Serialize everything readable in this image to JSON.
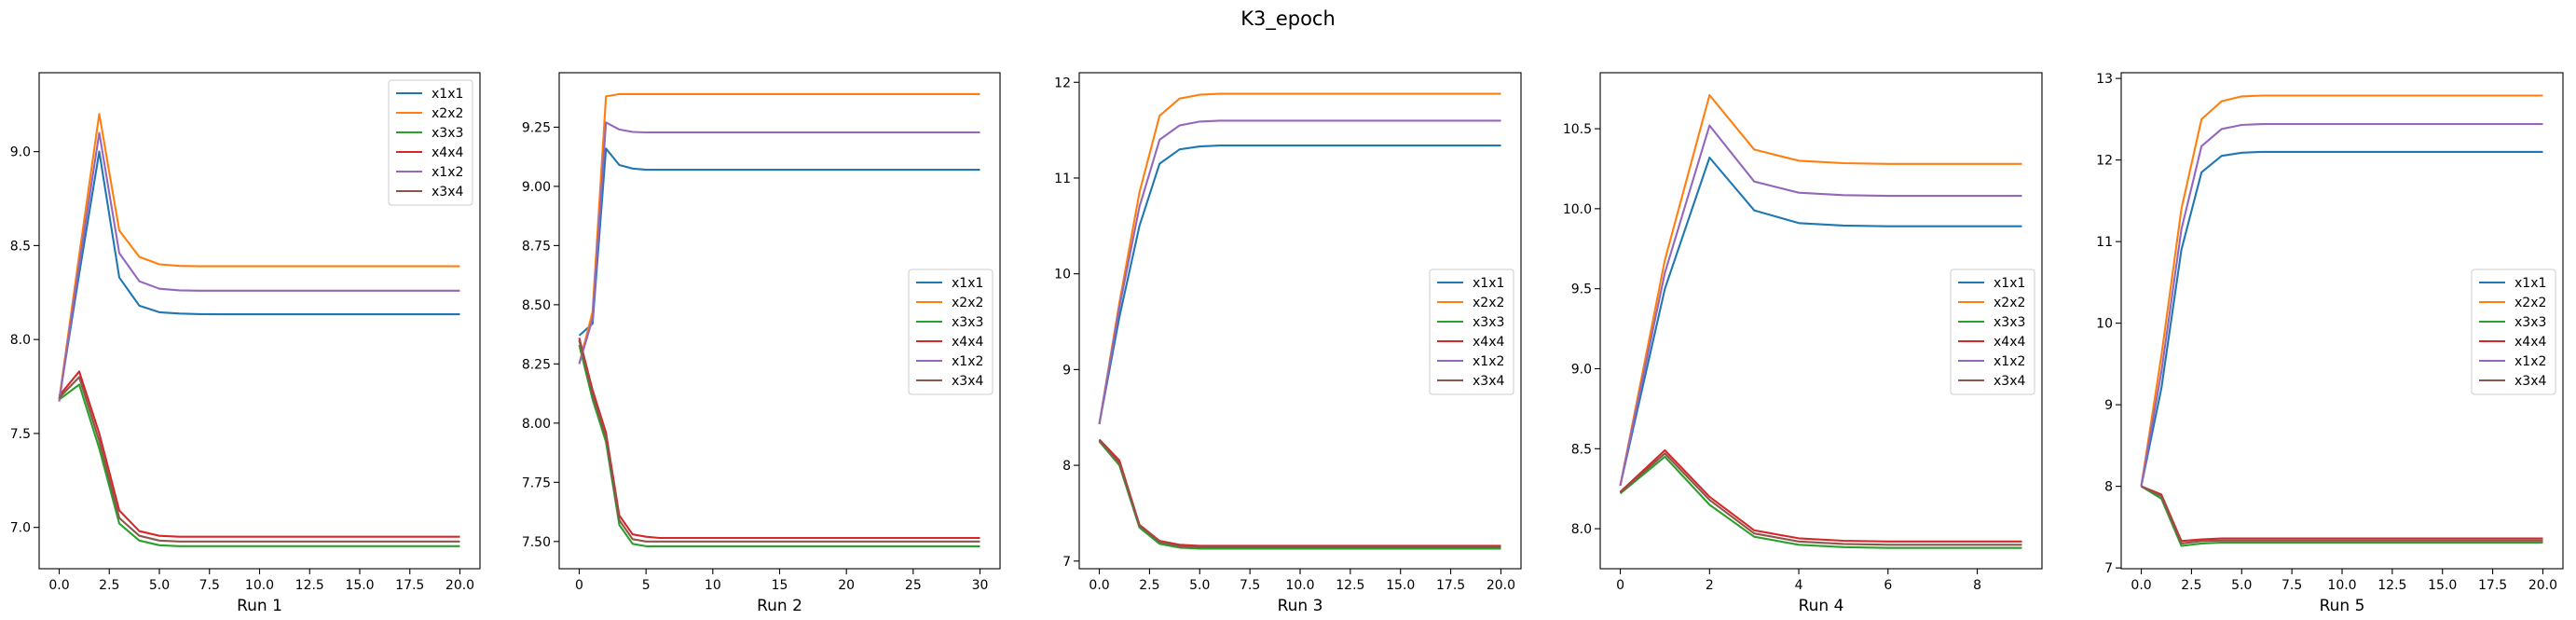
{
  "figure": {
    "title": "K3_epoch"
  },
  "chart_data": [
    {
      "type": "line",
      "xlabel": "Run 1",
      "xlim": [
        -1,
        21
      ],
      "ylim": [
        6.78,
        9.42
      ],
      "xticks": [
        0,
        2.5,
        5,
        7.5,
        10,
        12.5,
        15,
        17.5,
        20
      ],
      "xtick_labels": [
        "0.0",
        "2.5",
        "5.0",
        "7.5",
        "10.0",
        "12.5",
        "15.0",
        "17.5",
        "20.0"
      ],
      "yticks": [
        7.0,
        7.5,
        8.0,
        8.5,
        9.0
      ],
      "ytick_labels": [
        "7.0",
        "7.5",
        "8.0",
        "8.5",
        "9.0"
      ],
      "legend_loc": "upper right",
      "x": [
        0,
        1,
        2,
        3,
        4,
        5,
        6,
        7,
        8,
        9,
        10,
        11,
        12,
        13,
        14,
        15,
        16,
        17,
        18,
        19,
        20
      ],
      "series": [
        {
          "name": "x1x1",
          "color": "#1f77b4",
          "values": [
            7.68,
            8.35,
            9.0,
            8.33,
            8.18,
            8.145,
            8.138,
            8.135,
            8.134,
            8.134,
            8.134,
            8.134,
            8.134,
            8.134,
            8.134,
            8.134,
            8.134,
            8.134,
            8.134,
            8.134,
            8.134
          ]
        },
        {
          "name": "x2x2",
          "color": "#ff7f0e",
          "values": [
            7.68,
            8.45,
            9.2,
            8.58,
            8.44,
            8.4,
            8.392,
            8.39,
            8.39,
            8.39,
            8.39,
            8.39,
            8.39,
            8.39,
            8.39,
            8.39,
            8.39,
            8.39,
            8.39,
            8.39,
            8.39
          ]
        },
        {
          "name": "x3x3",
          "color": "#2ca02c",
          "values": [
            7.68,
            7.76,
            7.42,
            7.02,
            6.93,
            6.905,
            6.9,
            6.9,
            6.9,
            6.9,
            6.9,
            6.9,
            6.9,
            6.9,
            6.9,
            6.9,
            6.9,
            6.9,
            6.9,
            6.9,
            6.9
          ]
        },
        {
          "name": "x4x4",
          "color": "#d62728",
          "values": [
            7.7,
            7.83,
            7.5,
            7.09,
            6.98,
            6.955,
            6.95,
            6.95,
            6.95,
            6.95,
            6.95,
            6.95,
            6.95,
            6.95,
            6.95,
            6.95,
            6.95,
            6.95,
            6.95,
            6.95,
            6.95
          ]
        },
        {
          "name": "x1x2",
          "color": "#9467bd",
          "values": [
            7.67,
            8.4,
            9.1,
            8.46,
            8.31,
            8.27,
            8.262,
            8.26,
            8.26,
            8.26,
            8.26,
            8.26,
            8.26,
            8.26,
            8.26,
            8.26,
            8.26,
            8.26,
            8.26,
            8.26,
            8.26
          ]
        },
        {
          "name": "x3x4",
          "color": "#8c564b",
          "values": [
            7.69,
            7.8,
            7.46,
            7.05,
            6.955,
            6.93,
            6.925,
            6.925,
            6.925,
            6.925,
            6.925,
            6.925,
            6.925,
            6.925,
            6.925,
            6.925,
            6.925,
            6.925,
            6.925,
            6.925,
            6.925
          ]
        }
      ]
    },
    {
      "type": "line",
      "xlabel": "Run 2",
      "xlim": [
        -1.5,
        31.5
      ],
      "ylim": [
        7.385,
        9.48
      ],
      "xticks": [
        0,
        5,
        10,
        15,
        20,
        25,
        30
      ],
      "xtick_labels": [
        "0",
        "5",
        "10",
        "15",
        "20",
        "25",
        "30"
      ],
      "yticks": [
        7.5,
        7.75,
        8.0,
        8.25,
        8.5,
        8.75,
        9.0,
        9.25
      ],
      "ytick_labels": [
        "7.50",
        "7.75",
        "8.00",
        "8.25",
        "8.50",
        "8.75",
        "9.00",
        "9.25"
      ],
      "legend_loc": "center right",
      "x": [
        0,
        1,
        2,
        3,
        4,
        5,
        6,
        7,
        8,
        9,
        10,
        11,
        12,
        13,
        14,
        15,
        16,
        17,
        18,
        19,
        20,
        21,
        22,
        23,
        24,
        25,
        26,
        27,
        28,
        29,
        30
      ],
      "series": [
        {
          "name": "x1x1",
          "color": "#1f77b4",
          "values": [
            8.37,
            8.42,
            9.16,
            9.09,
            9.075,
            9.07,
            9.07,
            9.07,
            9.07,
            9.07,
            9.07,
            9.07,
            9.07,
            9.07,
            9.07,
            9.07,
            9.07,
            9.07,
            9.07,
            9.07,
            9.07,
            9.07,
            9.07,
            9.07,
            9.07,
            9.07,
            9.07,
            9.07,
            9.07,
            9.07,
            9.07
          ]
        },
        {
          "name": "x2x2",
          "color": "#ff7f0e",
          "values": [
            8.25,
            8.47,
            9.38,
            9.39,
            9.39,
            9.39,
            9.39,
            9.39,
            9.39,
            9.39,
            9.39,
            9.39,
            9.39,
            9.39,
            9.39,
            9.39,
            9.39,
            9.39,
            9.39,
            9.39,
            9.39,
            9.39,
            9.39,
            9.39,
            9.39,
            9.39,
            9.39,
            9.39,
            9.39,
            9.39,
            9.39
          ]
        },
        {
          "name": "x3x3",
          "color": "#2ca02c",
          "values": [
            8.33,
            8.1,
            7.92,
            7.57,
            7.49,
            7.48,
            7.48,
            7.48,
            7.48,
            7.48,
            7.48,
            7.48,
            7.48,
            7.48,
            7.48,
            7.48,
            7.48,
            7.48,
            7.48,
            7.48,
            7.48,
            7.48,
            7.48,
            7.48,
            7.48,
            7.48,
            7.48,
            7.48,
            7.48,
            7.48,
            7.48
          ]
        },
        {
          "name": "x4x4",
          "color": "#d62728",
          "values": [
            8.36,
            8.14,
            7.96,
            7.61,
            7.53,
            7.52,
            7.515,
            7.515,
            7.515,
            7.515,
            7.515,
            7.515,
            7.515,
            7.515,
            7.515,
            7.515,
            7.515,
            7.515,
            7.515,
            7.515,
            7.515,
            7.515,
            7.515,
            7.515,
            7.515,
            7.515,
            7.515,
            7.515,
            7.515,
            7.515,
            7.515
          ]
        },
        {
          "name": "x1x2",
          "color": "#9467bd",
          "values": [
            8.25,
            8.44,
            9.27,
            9.24,
            9.23,
            9.228,
            9.228,
            9.228,
            9.228,
            9.228,
            9.228,
            9.228,
            9.228,
            9.228,
            9.228,
            9.228,
            9.228,
            9.228,
            9.228,
            9.228,
            9.228,
            9.228,
            9.228,
            9.228,
            9.228,
            9.228,
            9.228,
            9.228,
            9.228,
            9.228,
            9.228
          ]
        },
        {
          "name": "x3x4",
          "color": "#8c564b",
          "values": [
            8.35,
            8.12,
            7.94,
            7.59,
            7.51,
            7.5,
            7.5,
            7.5,
            7.5,
            7.5,
            7.5,
            7.5,
            7.5,
            7.5,
            7.5,
            7.5,
            7.5,
            7.5,
            7.5,
            7.5,
            7.5,
            7.5,
            7.5,
            7.5,
            7.5,
            7.5,
            7.5,
            7.5,
            7.5,
            7.5,
            7.5
          ]
        }
      ]
    },
    {
      "type": "line",
      "xlabel": "Run 3",
      "xlim": [
        -1,
        21
      ],
      "ylim": [
        6.92,
        12.1
      ],
      "xticks": [
        0,
        2.5,
        5,
        7.5,
        10,
        12.5,
        15,
        17.5,
        20
      ],
      "xtick_labels": [
        "0.0",
        "2.5",
        "5.0",
        "7.5",
        "10.0",
        "12.5",
        "15.0",
        "17.5",
        "20.0"
      ],
      "yticks": [
        7,
        8,
        9,
        10,
        11,
        12
      ],
      "ytick_labels": [
        "7",
        "8",
        "9",
        "10",
        "11",
        "12"
      ],
      "legend_loc": "center right",
      "x": [
        0,
        1,
        2,
        3,
        4,
        5,
        6,
        7,
        8,
        9,
        10,
        11,
        12,
        13,
        14,
        15,
        16,
        17,
        18,
        19,
        20
      ],
      "series": [
        {
          "name": "x1x1",
          "color": "#1f77b4",
          "values": [
            8.43,
            9.55,
            10.5,
            11.15,
            11.3,
            11.33,
            11.34,
            11.34,
            11.34,
            11.34,
            11.34,
            11.34,
            11.34,
            11.34,
            11.34,
            11.34,
            11.34,
            11.34,
            11.34,
            11.34,
            11.34
          ]
        },
        {
          "name": "x2x2",
          "color": "#ff7f0e",
          "values": [
            8.43,
            9.7,
            10.85,
            11.65,
            11.83,
            11.87,
            11.88,
            11.88,
            11.88,
            11.88,
            11.88,
            11.88,
            11.88,
            11.88,
            11.88,
            11.88,
            11.88,
            11.88,
            11.88,
            11.88,
            11.88
          ]
        },
        {
          "name": "x3x3",
          "color": "#2ca02c",
          "values": [
            8.25,
            8.0,
            7.35,
            7.18,
            7.14,
            7.13,
            7.13,
            7.13,
            7.13,
            7.13,
            7.13,
            7.13,
            7.13,
            7.13,
            7.13,
            7.13,
            7.13,
            7.13,
            7.13,
            7.13,
            7.13
          ]
        },
        {
          "name": "x4x4",
          "color": "#d62728",
          "values": [
            8.27,
            8.05,
            7.38,
            7.21,
            7.17,
            7.16,
            7.16,
            7.16,
            7.16,
            7.16,
            7.16,
            7.16,
            7.16,
            7.16,
            7.16,
            7.16,
            7.16,
            7.16,
            7.16,
            7.16,
            7.16
          ]
        },
        {
          "name": "x1x2",
          "color": "#9467bd",
          "values": [
            8.43,
            9.65,
            10.7,
            11.4,
            11.55,
            11.59,
            11.6,
            11.6,
            11.6,
            11.6,
            11.6,
            11.6,
            11.6,
            11.6,
            11.6,
            11.6,
            11.6,
            11.6,
            11.6,
            11.6,
            11.6
          ]
        },
        {
          "name": "x3x4",
          "color": "#8c564b",
          "values": [
            8.26,
            8.02,
            7.37,
            7.2,
            7.155,
            7.145,
            7.145,
            7.145,
            7.145,
            7.145,
            7.145,
            7.145,
            7.145,
            7.145,
            7.145,
            7.145,
            7.145,
            7.145,
            7.145,
            7.145,
            7.145
          ]
        }
      ]
    },
    {
      "type": "line",
      "xlabel": "Run 4",
      "xlim": [
        -0.45,
        9.45
      ],
      "ylim": [
        7.75,
        10.85
      ],
      "xticks": [
        0,
        2,
        4,
        6,
        8
      ],
      "xtick_labels": [
        "0",
        "2",
        "4",
        "6",
        "8"
      ],
      "yticks": [
        8.0,
        8.5,
        9.0,
        9.5,
        10.0,
        10.5
      ],
      "ytick_labels": [
        "8.0",
        "8.5",
        "9.0",
        "9.5",
        "10.0",
        "10.5"
      ],
      "legend_loc": "center right",
      "x": [
        0,
        1,
        2,
        3,
        4,
        5,
        6,
        7,
        8,
        9
      ],
      "series": [
        {
          "name": "x1x1",
          "color": "#1f77b4",
          "values": [
            8.27,
            9.5,
            10.32,
            9.99,
            9.91,
            9.895,
            9.89,
            9.89,
            9.89,
            9.89
          ]
        },
        {
          "name": "x2x2",
          "color": "#ff7f0e",
          "values": [
            8.27,
            9.68,
            10.71,
            10.37,
            10.3,
            10.285,
            10.28,
            10.28,
            10.28,
            10.28
          ]
        },
        {
          "name": "x3x3",
          "color": "#2ca02c",
          "values": [
            8.22,
            8.45,
            8.15,
            7.95,
            7.9,
            7.885,
            7.88,
            7.88,
            7.88,
            7.88
          ]
        },
        {
          "name": "x4x4",
          "color": "#d62728",
          "values": [
            8.23,
            8.49,
            8.2,
            7.99,
            7.94,
            7.925,
            7.92,
            7.92,
            7.92,
            7.92
          ]
        },
        {
          "name": "x1x2",
          "color": "#9467bd",
          "values": [
            8.27,
            9.6,
            10.52,
            10.17,
            10.1,
            10.085,
            10.08,
            10.08,
            10.08,
            10.08
          ]
        },
        {
          "name": "x3x4",
          "color": "#8c564b",
          "values": [
            8.225,
            8.47,
            8.18,
            7.97,
            7.92,
            7.905,
            7.9,
            7.9,
            7.9,
            7.9
          ]
        }
      ]
    },
    {
      "type": "line",
      "xlabel": "Run 5",
      "xlim": [
        -1,
        21
      ],
      "ylim": [
        6.99,
        13.07
      ],
      "xticks": [
        0,
        2.5,
        5,
        7.5,
        10,
        12.5,
        15,
        17.5,
        20
      ],
      "xtick_labels": [
        "0.0",
        "2.5",
        "5.0",
        "7.5",
        "10.0",
        "12.5",
        "15.0",
        "17.5",
        "20.0"
      ],
      "yticks": [
        7,
        8,
        9,
        10,
        11,
        12,
        13
      ],
      "ytick_labels": [
        "7",
        "8",
        "9",
        "10",
        "11",
        "12",
        "13"
      ],
      "legend_loc": "center right",
      "x": [
        0,
        1,
        2,
        3,
        4,
        5,
        6,
        7,
        8,
        9,
        10,
        11,
        12,
        13,
        14,
        15,
        16,
        17,
        18,
        19,
        20
      ],
      "series": [
        {
          "name": "x1x1",
          "color": "#1f77b4",
          "values": [
            8.0,
            9.2,
            10.9,
            11.85,
            12.05,
            12.09,
            12.1,
            12.1,
            12.1,
            12.1,
            12.1,
            12.1,
            12.1,
            12.1,
            12.1,
            12.1,
            12.1,
            12.1,
            12.1,
            12.1,
            12.1
          ]
        },
        {
          "name": "x2x2",
          "color": "#ff7f0e",
          "values": [
            8.0,
            9.6,
            11.4,
            12.5,
            12.72,
            12.78,
            12.79,
            12.79,
            12.79,
            12.79,
            12.79,
            12.79,
            12.79,
            12.79,
            12.79,
            12.79,
            12.79,
            12.79,
            12.79,
            12.79,
            12.79
          ]
        },
        {
          "name": "x3x3",
          "color": "#2ca02c",
          "values": [
            8.0,
            7.85,
            7.27,
            7.3,
            7.31,
            7.31,
            7.31,
            7.31,
            7.31,
            7.31,
            7.31,
            7.31,
            7.31,
            7.31,
            7.31,
            7.31,
            7.31,
            7.31,
            7.31,
            7.31,
            7.31
          ]
        },
        {
          "name": "x4x4",
          "color": "#d62728",
          "values": [
            8.0,
            7.9,
            7.33,
            7.35,
            7.36,
            7.36,
            7.36,
            7.36,
            7.36,
            7.36,
            7.36,
            7.36,
            7.36,
            7.36,
            7.36,
            7.36,
            7.36,
            7.36,
            7.36,
            7.36,
            7.36
          ]
        },
        {
          "name": "x1x2",
          "color": "#9467bd",
          "values": [
            8.0,
            9.4,
            11.15,
            12.17,
            12.38,
            12.43,
            12.44,
            12.44,
            12.44,
            12.44,
            12.44,
            12.44,
            12.44,
            12.44,
            12.44,
            12.44,
            12.44,
            12.44,
            12.44,
            12.44,
            12.44
          ]
        },
        {
          "name": "x3x4",
          "color": "#8c564b",
          "values": [
            8.0,
            7.88,
            7.3,
            7.33,
            7.335,
            7.335,
            7.335,
            7.335,
            7.335,
            7.335,
            7.335,
            7.335,
            7.335,
            7.335,
            7.335,
            7.335,
            7.335,
            7.335,
            7.335,
            7.335,
            7.335
          ]
        }
      ]
    }
  ]
}
